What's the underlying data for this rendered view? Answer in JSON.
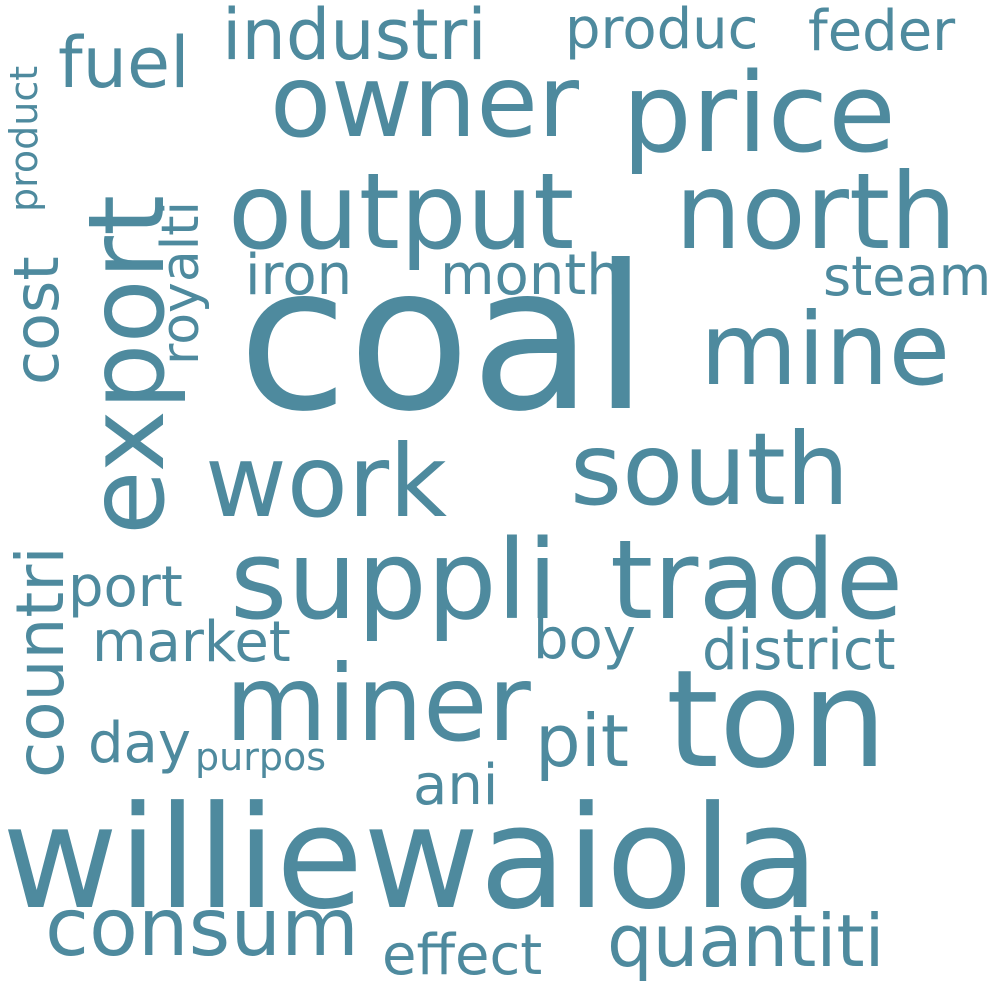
{
  "color": "#4e8a9e",
  "words": {
    "coal": "coal",
    "williewaiola": "williewaiola",
    "ton": "ton",
    "suppli": "suppli",
    "trade": "trade",
    "export": "export",
    "output": "output",
    "north": "north",
    "owner": "owner",
    "price": "price",
    "miner": "miner",
    "mine": "mine",
    "work": "work",
    "south": "south",
    "consum": "consum",
    "quantiti": "quantiti",
    "countri": "countri",
    "industri": "industri",
    "fuel": "fuel",
    "cost": "cost",
    "pit": "pit",
    "royalti": "royalti",
    "produc": "produc",
    "feder": "feder",
    "iron": "iron",
    "month": "month",
    "steam": "steam",
    "port": "port",
    "market": "market",
    "boy": "boy",
    "district": "district",
    "day": "day",
    "purpos": "purpos",
    "ani": "ani",
    "effect": "effect",
    "product": "product"
  }
}
